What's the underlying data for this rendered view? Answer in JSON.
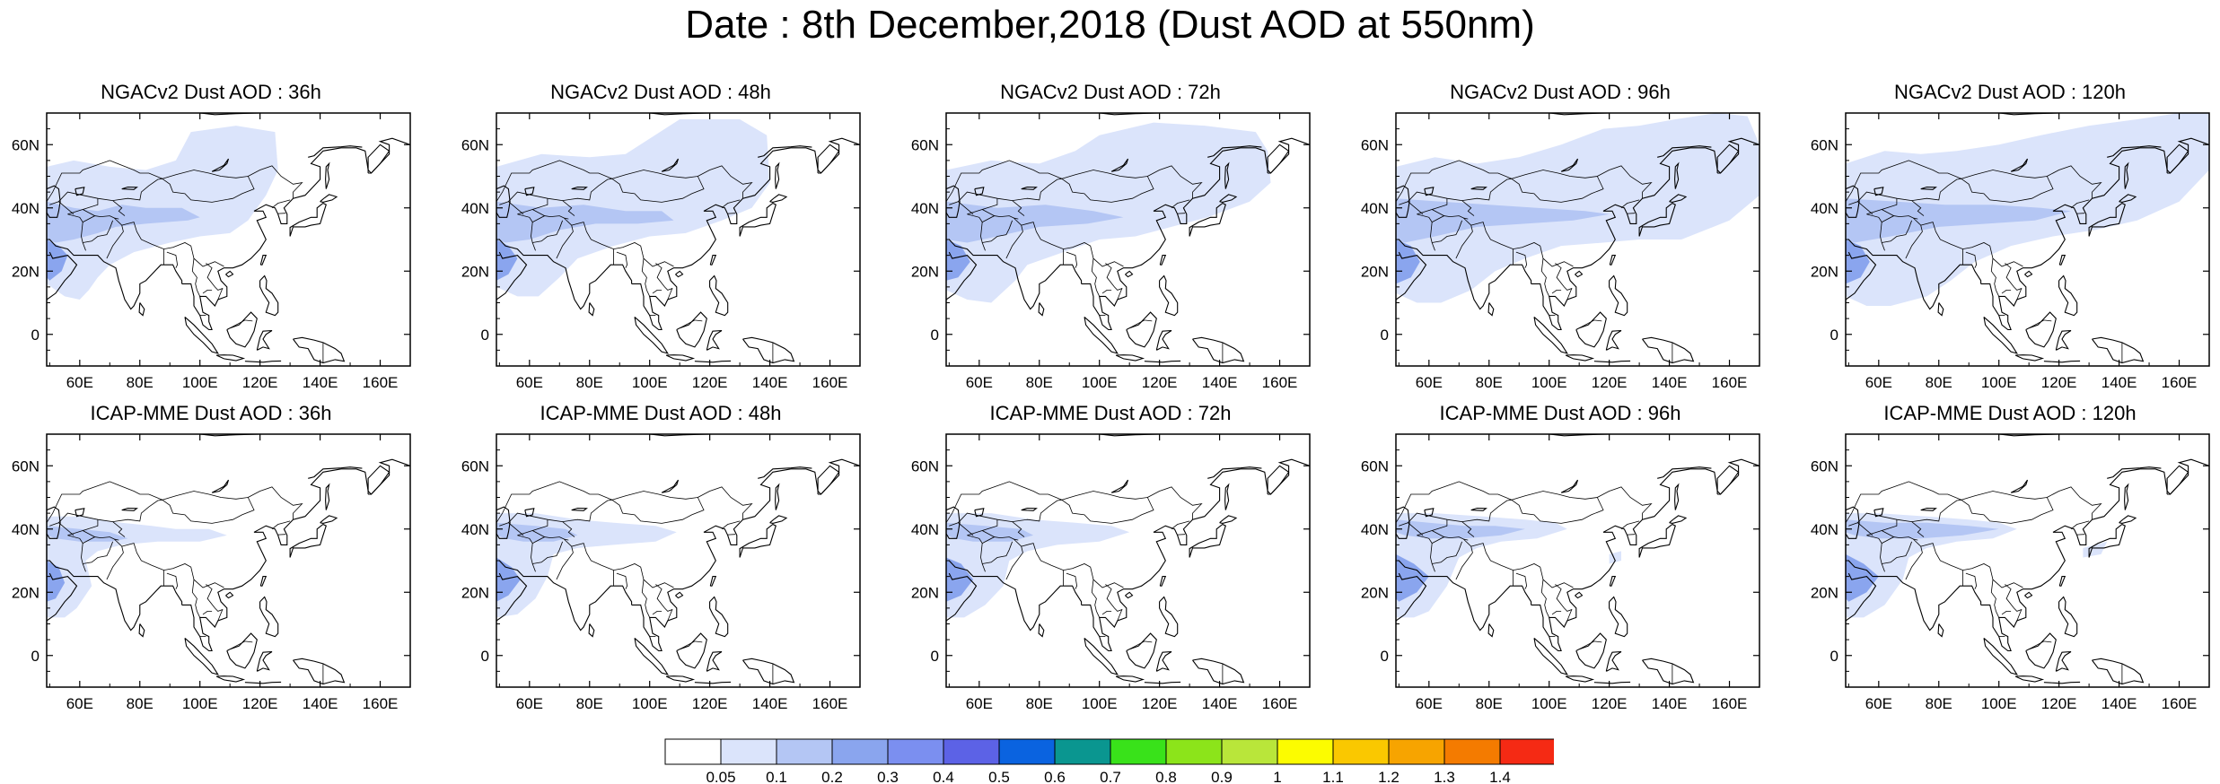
{
  "title": "Date : 8th December,2018 (Dust AOD at 550nm)",
  "map": {
    "projection": "cylindrical-equidistant",
    "lon_range": [
      49,
      170
    ],
    "lat_range": [
      -10,
      70
    ],
    "lon_tick_labels": [
      "60E",
      "80E",
      "100E",
      "120E",
      "140E",
      "160E"
    ],
    "lat_tick_labels": [
      "60N",
      "40N",
      "20N",
      "0"
    ],
    "coastline_color": "#000000",
    "background_color": "#ffffff"
  },
  "colors": {
    "lt_005_01": "#dbe4fb",
    "lt_01_02": "#b4c6f4",
    "lt_02_03": "#8aa5ee"
  },
  "panels": [
    {
      "title": "NGACv2 Dust AOD : 36h"
    },
    {
      "title": "NGACv2 Dust AOD : 48h"
    },
    {
      "title": "NGACv2 Dust AOD : 72h"
    },
    {
      "title": "NGACv2 Dust AOD : 96h"
    },
    {
      "title": "NGACv2 Dust AOD : 120h"
    },
    {
      "title": "ICAP-MME Dust AOD : 36h"
    },
    {
      "title": "ICAP-MME Dust AOD : 48h"
    },
    {
      "title": "ICAP-MME Dust AOD : 72h"
    },
    {
      "title": "ICAP-MME Dust AOD : 96h"
    },
    {
      "title": "ICAP-MME Dust AOD : 120h"
    }
  ],
  "colorbar": {
    "labels": [
      "0.05",
      "0.1",
      "0.2",
      "0.3",
      "0.4",
      "0.5",
      "0.6",
      "0.7",
      "0.8",
      "0.9",
      "1",
      "1.1",
      "1.2",
      "1.3",
      "1.4"
    ],
    "colors": [
      "#ffffff",
      "#dbe4fb",
      "#b4c6f4",
      "#8aa5ee",
      "#7b8ff0",
      "#5c62e6",
      "#0a63e0",
      "#0a9690",
      "#39e21a",
      "#8ce41a",
      "#b9e63a",
      "#fcfc00",
      "#fac800",
      "#f7a400",
      "#f47b00",
      "#f52a14"
    ]
  }
}
